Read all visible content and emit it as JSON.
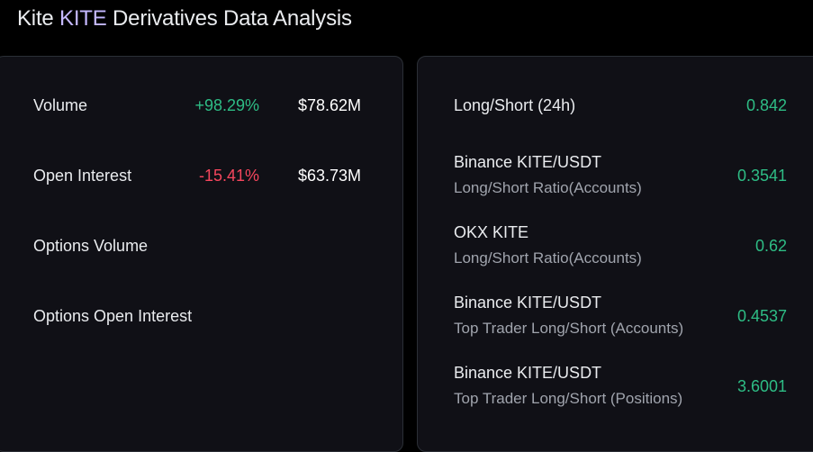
{
  "header": {
    "title_prefix": "Kite ",
    "title_accent": "KITE",
    "title_suffix": " Derivatives Data Analysis"
  },
  "left_panel": {
    "rows": [
      {
        "label": "Volume",
        "change": "+98.29%",
        "value": "$78.62M"
      },
      {
        "label": "Open Interest",
        "change": "-15.41%",
        "value": "$63.73M"
      },
      {
        "label": "Options Volume"
      },
      {
        "label": "Options Open Interest"
      }
    ]
  },
  "right_panel": {
    "rows": [
      {
        "label": "Long/Short (24h)",
        "value": "0.842"
      },
      {
        "label": "Binance KITE/USDT",
        "sub": "Long/Short Ratio(Accounts)",
        "value": "0.3541"
      },
      {
        "label": "OKX KITE",
        "sub": "Long/Short Ratio(Accounts)",
        "value": "0.62"
      },
      {
        "label": "Binance KITE/USDT",
        "sub": "Top Trader Long/Short (Accounts)",
        "value": "0.4537"
      },
      {
        "label": "Binance KITE/USDT",
        "sub": "Top Trader Long/Short (Positions)",
        "value": "3.6001"
      }
    ]
  },
  "colors": {
    "positive": "#2ebd85",
    "negative": "#f6465d",
    "accent": "#c4b8ff"
  }
}
